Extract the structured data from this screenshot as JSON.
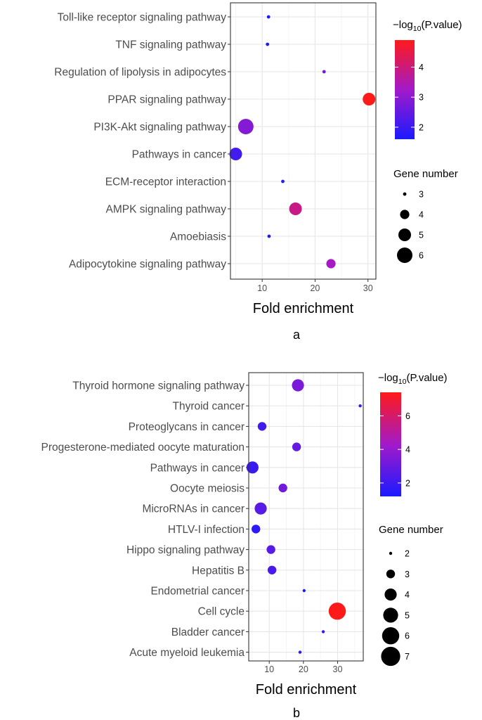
{
  "chart_data": [
    {
      "panel_label": "a",
      "type": "scatter",
      "xlabel": "Fold enrichment",
      "xticks": [
        10,
        20,
        30
      ],
      "xlim": [
        4,
        31.5
      ],
      "color_legend": {
        "title_prefix": "−log",
        "title_sub": "10",
        "title_suffix": "(P.value)",
        "ticks": [
          2,
          3,
          4
        ],
        "range": [
          1.6,
          4.9
        ]
      },
      "size_legend": {
        "title": "Gene number",
        "values": [
          3,
          4,
          5,
          6
        ]
      },
      "points": [
        {
          "pathway": "Toll-like receptor signaling pathway",
          "fold": 11.2,
          "genes": 3,
          "logp": 1.65
        },
        {
          "pathway": "TNF signaling pathway",
          "fold": 11.0,
          "genes": 3,
          "logp": 1.6
        },
        {
          "pathway": "Regulation of lipolysis in adipocytes",
          "fold": 21.7,
          "genes": 3,
          "logp": 2.6
        },
        {
          "pathway": "PPAR signaling pathway",
          "fold": 30.2,
          "genes": 5,
          "logp": 4.9
        },
        {
          "pathway": "PI3K-Akt signaling pathway",
          "fold": 6.9,
          "genes": 6,
          "logp": 2.9
        },
        {
          "pathway": "Pathways in cancer",
          "fold": 5.0,
          "genes": 5,
          "logp": 2.1
        },
        {
          "pathway": "ECM-receptor interaction",
          "fold": 13.9,
          "genes": 3,
          "logp": 1.8
        },
        {
          "pathway": "AMPK signaling pathway",
          "fold": 16.3,
          "genes": 5,
          "logp": 3.9
        },
        {
          "pathway": "Amoebiasis",
          "fold": 11.3,
          "genes": 3,
          "logp": 1.65
        },
        {
          "pathway": "Adipocytokine signaling pathway",
          "fold": 23.0,
          "genes": 4,
          "logp": 3.3
        }
      ]
    },
    {
      "panel_label": "b",
      "type": "scatter",
      "xlabel": "Fold enrichment",
      "xticks": [
        10,
        20,
        30
      ],
      "xlim": [
        4,
        37.5
      ],
      "color_legend": {
        "title_prefix": "−log",
        "title_sub": "10",
        "title_suffix": "(P.value)",
        "ticks": [
          2,
          4,
          6
        ],
        "range": [
          1.2,
          7.4
        ]
      },
      "size_legend": {
        "title": "Gene number",
        "values": [
          2,
          3,
          4,
          5,
          6,
          7
        ]
      },
      "points": [
        {
          "pathway": "Thyroid hormone signaling pathway",
          "fold": 18.4,
          "genes": 4,
          "logp": 3.4
        },
        {
          "pathway": "Thyroid cancer",
          "fold": 36.6,
          "genes": 2,
          "logp": 1.7
        },
        {
          "pathway": "Proteoglycans in cancer",
          "fold": 7.9,
          "genes": 3,
          "logp": 2.1
        },
        {
          "pathway": "Progesterone-mediated oocyte maturation",
          "fold": 18.0,
          "genes": 3,
          "logp": 2.9
        },
        {
          "pathway": "Pathways in cancer",
          "fold": 5.1,
          "genes": 4,
          "logp": 1.9
        },
        {
          "pathway": "Oocyte meiosis",
          "fold": 14.0,
          "genes": 3,
          "logp": 3.2
        },
        {
          "pathway": "MicroRNAs in cancer",
          "fold": 7.5,
          "genes": 4,
          "logp": 2.6
        },
        {
          "pathway": "HTLV-I infection",
          "fold": 6.1,
          "genes": 3,
          "logp": 1.6
        },
        {
          "pathway": "Hippo signaling pathway",
          "fold": 10.5,
          "genes": 3,
          "logp": 2.6
        },
        {
          "pathway": "Hepatitis B",
          "fold": 10.8,
          "genes": 3,
          "logp": 2.3
        },
        {
          "pathway": "Endometrial cancer",
          "fold": 20.2,
          "genes": 2,
          "logp": 1.3
        },
        {
          "pathway": "Cell cycle",
          "fold": 29.9,
          "genes": 6,
          "logp": 7.4
        },
        {
          "pathway": "Bladder cancer",
          "fold": 25.8,
          "genes": 2,
          "logp": 1.6
        },
        {
          "pathway": "Acute myeloid leukemia",
          "fold": 19.0,
          "genes": 2,
          "logp": 1.3
        }
      ]
    }
  ]
}
